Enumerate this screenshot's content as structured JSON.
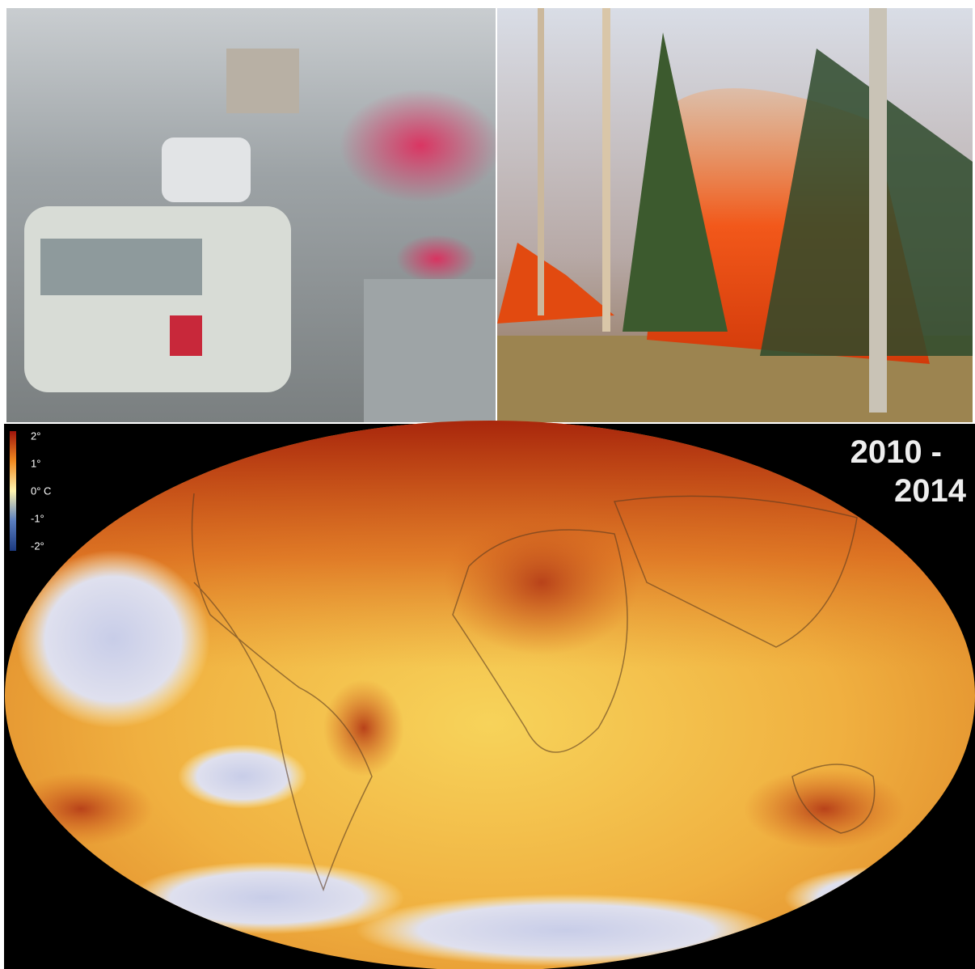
{
  "legend": {
    "labels": [
      "2°",
      "1°",
      "0° C",
      "-1°",
      "-2°"
    ]
  },
  "period": {
    "start": "2010 -",
    "end": "2014"
  }
}
